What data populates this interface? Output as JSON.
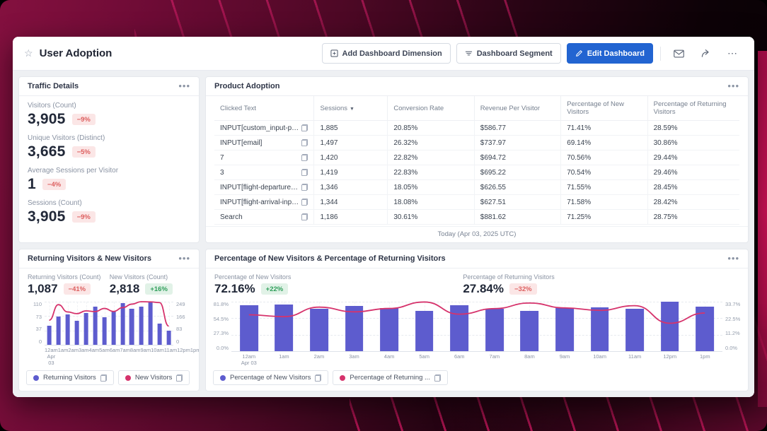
{
  "header": {
    "title": "User Adoption",
    "buttons": {
      "add_dimension": "Add Dashboard Dimension",
      "segment": "Dashboard Segment",
      "edit": "Edit Dashboard"
    }
  },
  "colors": {
    "accent_blue": "#2264d1",
    "bar_purple": "#5d5cce",
    "line_crimson": "#d6336c",
    "badge_down_bg": "#fbe6e6",
    "badge_down_text": "#dd5f5f",
    "badge_up_bg": "#e1f2e7",
    "badge_up_text": "#2f9e5a"
  },
  "traffic_details": {
    "title": "Traffic Details",
    "metrics": [
      {
        "label": "Visitors (Count)",
        "value": "3,905",
        "delta": "−9%",
        "direction": "down"
      },
      {
        "label": "Unique Visitors (Distinct)",
        "value": "3,665",
        "delta": "−5%",
        "direction": "down"
      },
      {
        "label": "Average Sessions per Visitor",
        "value": "1",
        "delta": "−4%",
        "direction": "down"
      },
      {
        "label": "Sessions (Count)",
        "value": "3,905",
        "delta": "−9%",
        "direction": "down"
      }
    ]
  },
  "product_adoption": {
    "title": "Product Adoption",
    "columns": [
      "Clicked Text",
      "Sessions",
      "Conversion Rate",
      "Revenue Per Visitor",
      "Percentage of New Visitors",
      "Percentage of Returning Visitors"
    ],
    "sorted_column": "Sessions",
    "rows": [
      [
        "INPUT[custom_input-pick...",
        "1,885",
        "20.85%",
        "$586.77",
        "71.41%",
        "28.59%"
      ],
      [
        "INPUT[email]",
        "1,497",
        "26.32%",
        "$737.97",
        "69.14%",
        "30.86%"
      ],
      [
        "7",
        "1,420",
        "22.82%",
        "$694.72",
        "70.56%",
        "29.44%"
      ],
      [
        "3",
        "1,419",
        "22.83%",
        "$695.22",
        "70.54%",
        "29.46%"
      ],
      [
        "INPUT[flight-departure-in...",
        "1,346",
        "18.05%",
        "$626.55",
        "71.55%",
        "28.45%"
      ],
      [
        "INPUT[flight-arrival-input ...",
        "1,344",
        "18.08%",
        "$627.51",
        "71.58%",
        "28.42%"
      ],
      [
        "Search",
        "1,186",
        "30.61%",
        "$881.62",
        "71.25%",
        "28.75%"
      ]
    ],
    "footer": "Today (Apr 03, 2025 UTC)"
  },
  "chart_data": [
    {
      "type": "bar+line",
      "title": "Returning Visitors & New Visitors",
      "kpis": [
        {
          "label": "Returning Visitors (Count)",
          "value": "1,087",
          "delta": "−41%",
          "direction": "down"
        },
        {
          "label": "New Visitors (Count)",
          "value": "2,818",
          "delta": "+16%",
          "direction": "up"
        }
      ],
      "categories": [
        "12am",
        "1am",
        "2am",
        "3am",
        "4am",
        "5am",
        "6am",
        "7am",
        "8am",
        "9am",
        "10am",
        "11am",
        "12pm",
        "1pm"
      ],
      "x_sublabel": "Apr 03",
      "series": [
        {
          "name": "Returning Visitors",
          "legend": "Returning Visitors",
          "type": "bar",
          "axis": "left",
          "color": "#5d5cce",
          "values": [
            48,
            72,
            77,
            62,
            82,
            97,
            71,
            85,
            106,
            92,
            97,
            110,
            54,
            36
          ]
        },
        {
          "name": "New Visitors",
          "legend": "New Visitors",
          "type": "line",
          "axis": "right",
          "color": "#d6336c",
          "values": [
            142,
            232,
            190,
            180,
            196,
            192,
            210,
            193,
            215,
            235,
            249,
            248,
            244,
            108
          ]
        }
      ],
      "left_axis": {
        "ticks": [
          "110",
          "73",
          "37",
          "0"
        ],
        "max": 110
      },
      "right_axis": {
        "ticks": [
          "249",
          "166",
          "83",
          "0"
        ],
        "max": 249
      },
      "grid": true,
      "legend_position": "bottom"
    },
    {
      "type": "bar+line",
      "title": "Percentage of New Visitors & Percentage of Returning Visitors",
      "kpis": [
        {
          "label": "Percentage of New Visitors",
          "value": "72.16%",
          "delta": "+22%",
          "direction": "up"
        },
        {
          "label": "Percentage of Returning Visitors",
          "value": "27.84%",
          "delta": "−32%",
          "direction": "down"
        }
      ],
      "categories": [
        "12am",
        "1am",
        "2am",
        "3am",
        "4am",
        "5am",
        "6am",
        "7am",
        "8am",
        "9am",
        "10am",
        "11am",
        "12pm",
        "1pm"
      ],
      "x_sublabel": "Apr 03",
      "series": [
        {
          "name": "Percentage of New Visitors",
          "legend": "Percentage of New Visitors",
          "type": "bar",
          "axis": "left",
          "color": "#5d5cce",
          "values": [
            76,
            77.5,
            70,
            74.8,
            71.5,
            66.5,
            76.4,
            70,
            66.8,
            71,
            73,
            70,
            81.8,
            73.8
          ]
        },
        {
          "name": "Percentage of Returning Visitors",
          "legend": "Percentage of Returning ...",
          "type": "line",
          "axis": "right",
          "color": "#d6336c",
          "values": [
            24.8,
            23.5,
            30,
            26.8,
            29.1,
            33.5,
            25.2,
            29,
            32.8,
            29.5,
            27.8,
            31,
            19,
            26
          ]
        }
      ],
      "left_axis": {
        "ticks": [
          "81.8%",
          "54.5%",
          "27.3%",
          "0.0%"
        ],
        "max": 81.8
      },
      "right_axis": {
        "ticks": [
          "33.7%",
          "22.5%",
          "11.2%",
          "0.0%"
        ],
        "max": 33.7
      },
      "grid": true,
      "legend_position": "bottom"
    }
  ]
}
